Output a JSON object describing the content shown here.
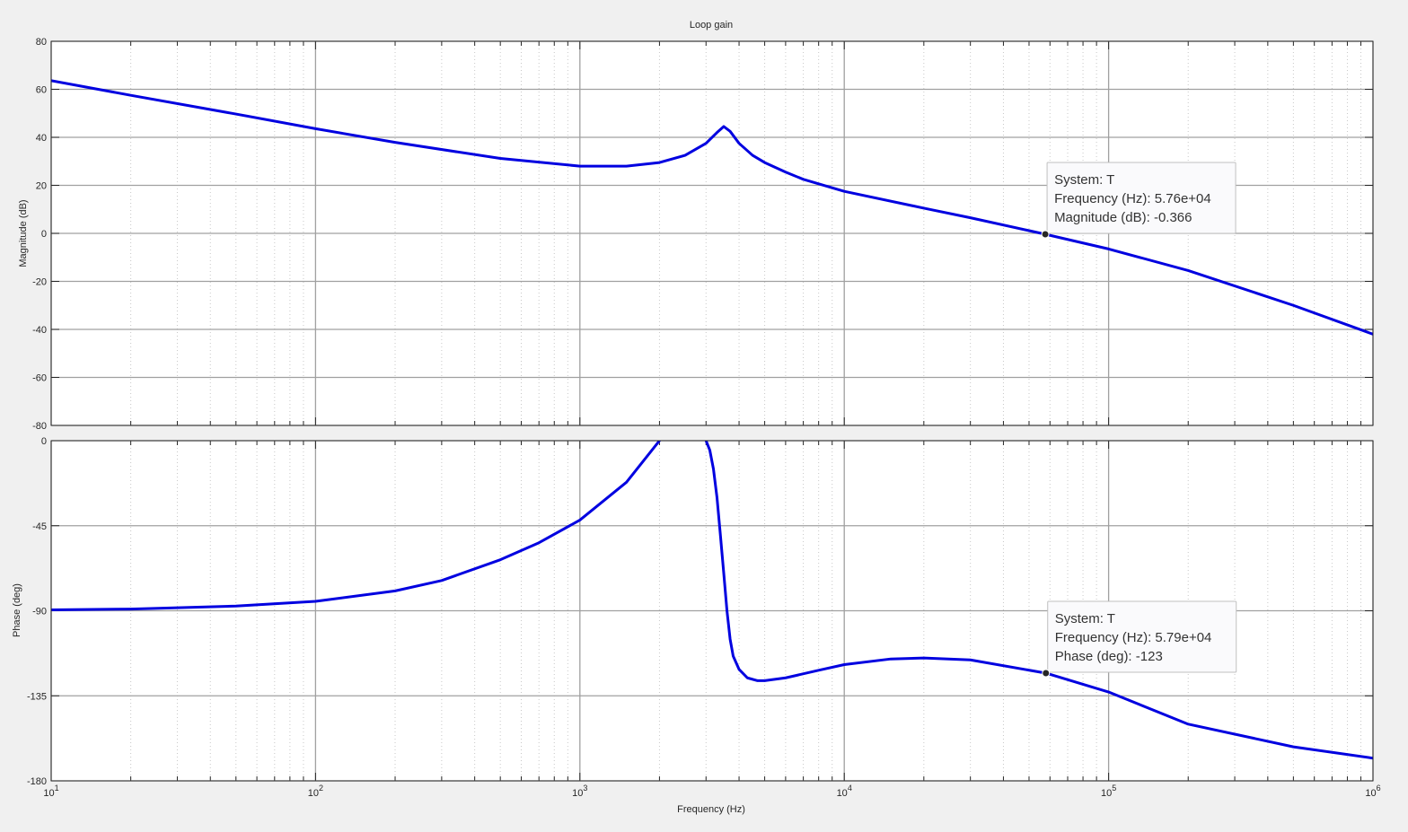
{
  "chart_data": {
    "type": "line",
    "title": "Loop gain",
    "xlabel": "Frequency  (Hz)",
    "xscale": "log",
    "xlim": [
      10,
      1000000
    ],
    "grid": true,
    "x_ticks": [
      {
        "value": 10,
        "base": "10",
        "exp": "1"
      },
      {
        "value": 100,
        "base": "10",
        "exp": "2"
      },
      {
        "value": 1000,
        "base": "10",
        "exp": "3"
      },
      {
        "value": 10000,
        "base": "10",
        "exp": "4"
      },
      {
        "value": 100000,
        "base": "10",
        "exp": "5"
      },
      {
        "value": 1000000,
        "base": "10",
        "exp": "6"
      }
    ],
    "line_color": "#0000e0",
    "subplots": [
      {
        "ylabel": "Magnitude (dB)",
        "ylim": [
          -80,
          80
        ],
        "yticks": [
          -80,
          -60,
          -40,
          -20,
          0,
          20,
          40,
          60,
          80
        ],
        "ytick_labels": [
          "-80",
          "-60",
          "-40",
          "-20",
          "0",
          "20",
          "40",
          "60",
          "80"
        ],
        "series": {
          "x": [
            10,
            20,
            50,
            100,
            200,
            500,
            1000,
            1500,
            2000,
            2500,
            3000,
            3300,
            3500,
            3700,
            4000,
            4500,
            5000,
            6000,
            7000,
            10000,
            20000,
            30000,
            57600,
            100000,
            200000,
            500000,
            1000000
          ],
          "y": [
            63.6,
            57.5,
            49.7,
            43.6,
            37.9,
            31.2,
            28.0,
            28.0,
            29.5,
            32.5,
            37.5,
            42.0,
            44.5,
            42.5,
            37.5,
            32.5,
            29.5,
            25.5,
            22.5,
            17.5,
            10.5,
            6.5,
            -0.366,
            -6.5,
            -15.5,
            -30.0,
            -42.0
          ]
        },
        "datatip": {
          "x": 57600,
          "y": -0.366,
          "lines": [
            "System: T",
            "Frequency (Hz): 5.76e+04",
            "Magnitude (dB): -0.366"
          ]
        }
      },
      {
        "ylabel": "Phase (deg)",
        "ylim": [
          -180,
          0
        ],
        "yticks": [
          -180,
          -135,
          -90,
          -45,
          0
        ],
        "ytick_labels": [
          "-180",
          "-135",
          "-90",
          "-45",
          "0"
        ],
        "series": [
          {
            "x": [
              10,
              20,
              50,
              100,
              200,
              300,
              500,
              700,
              1000,
              1500,
              2000
            ],
            "y": [
              -89.5,
              -89.1,
              -87.5,
              -85.0,
              -79.5,
              -74.0,
              -63.0,
              -54.0,
              -42.0,
              -22.0,
              0.0
            ]
          },
          {
            "x": [
              3000,
              3100,
              3200,
              3300,
              3400,
              3500,
              3600,
              3700,
              3800,
              4000,
              4300,
              4700,
              5000,
              6000,
              8000,
              10000,
              15000,
              20000,
              30000,
              57900,
              100000,
              200000,
              500000,
              1000000
            ],
            "y": [
              0.0,
              -5.0,
              -15.0,
              -30.0,
              -50.0,
              -70.0,
              -90.0,
              -105.0,
              -114.0,
              -121.0,
              -125.5,
              -127.0,
              -127.0,
              -125.5,
              -121.5,
              -118.5,
              -115.5,
              -115.0,
              -116.0,
              -123.0,
              -133.0,
              -150.0,
              -162.0,
              -168.0
            ]
          }
        ],
        "datatip": {
          "x": 57900,
          "y": -123,
          "lines": [
            "System: T",
            "Frequency (Hz): 5.79e+04",
            "Phase (deg): -123"
          ]
        }
      }
    ]
  }
}
